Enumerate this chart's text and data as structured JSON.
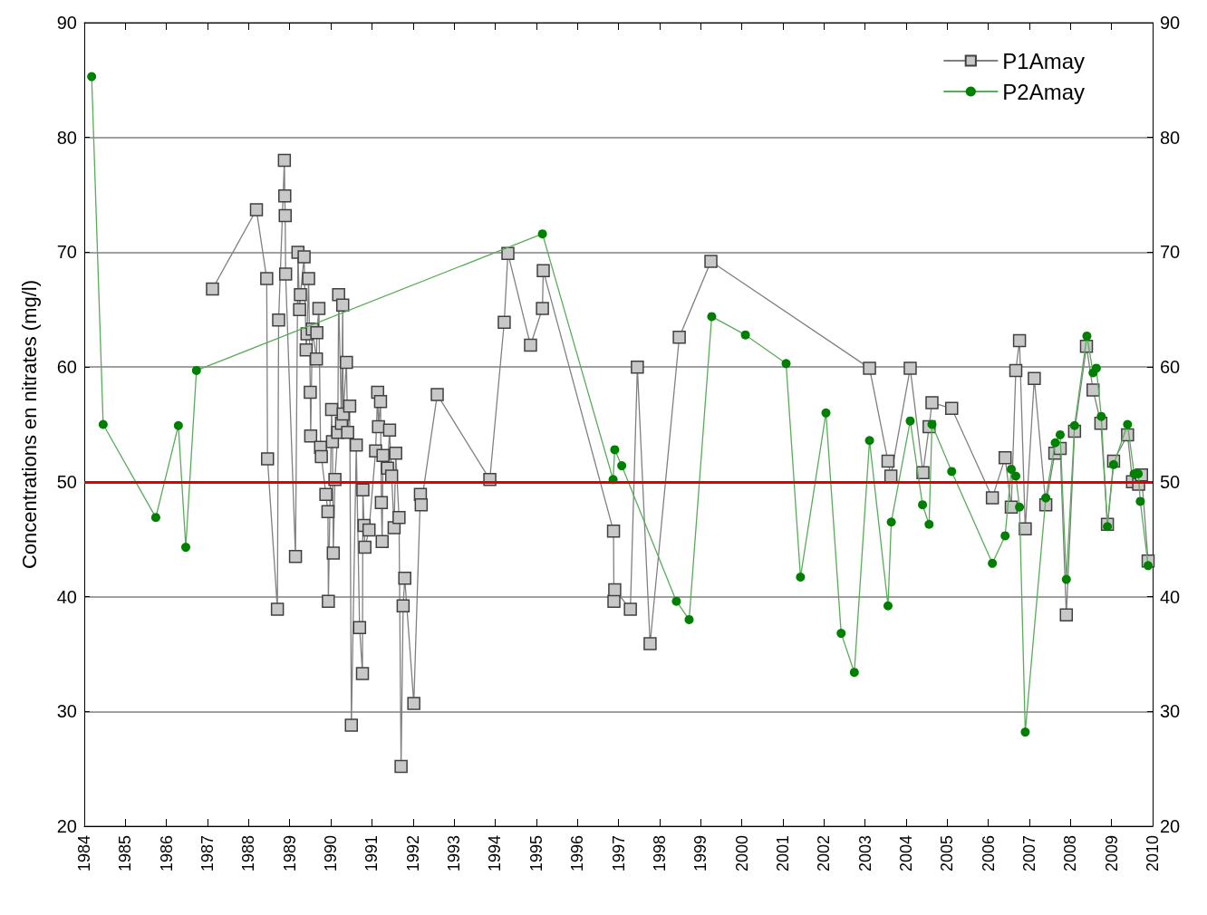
{
  "chart_data": {
    "type": "line",
    "ylabel": "Concentrations en nitrates (mg/l)",
    "xlim": [
      1984,
      2010
    ],
    "xticks": [
      1984,
      1985,
      1986,
      1987,
      1988,
      1989,
      1990,
      1991,
      1992,
      1993,
      1994,
      1995,
      1996,
      1997,
      1998,
      1999,
      2000,
      2001,
      2002,
      2003,
      2004,
      2005,
      2006,
      2007,
      2008,
      2009,
      2010
    ],
    "ylim": [
      20,
      90
    ],
    "yticks": [
      20,
      30,
      40,
      50,
      60,
      70,
      80,
      90
    ],
    "y2lim": [
      20,
      90
    ],
    "y2ticks": [
      20,
      30,
      40,
      50,
      60,
      70,
      80,
      90
    ],
    "grid": "y",
    "legend": "top right",
    "ref_lines": [
      {
        "axis": "y",
        "value": 50,
        "color": "#e00000"
      }
    ],
    "series": [
      {
        "name": "P1Amay",
        "color": "#808080",
        "marker": "square",
        "x": [
          1987.12,
          1988.19,
          1988.44,
          1988.46,
          1988.7,
          1988.73,
          1988.87,
          1988.88,
          1988.89,
          1988.9,
          1989.14,
          1989.2,
          1989.24,
          1989.26,
          1989.35,
          1989.4,
          1989.42,
          1989.46,
          1989.5,
          1989.51,
          1989.55,
          1989.65,
          1989.66,
          1989.71,
          1989.75,
          1989.77,
          1989.88,
          1989.93,
          1989.94,
          1990.02,
          1990.04,
          1990.06,
          1990.1,
          1990.17,
          1990.19,
          1990.26,
          1990.29,
          1990.3,
          1990.38,
          1990.41,
          1990.46,
          1990.5,
          1990.62,
          1990.7,
          1990.77,
          1990.78,
          1990.81,
          1990.83,
          1990.93,
          1991.09,
          1991.14,
          1991.16,
          1991.21,
          1991.23,
          1991.25,
          1991.27,
          1991.38,
          1991.43,
          1991.48,
          1991.54,
          1991.58,
          1991.66,
          1991.71,
          1991.76,
          1991.8,
          1992.02,
          1992.18,
          1992.2,
          1992.59,
          1993.87,
          1994.22,
          1994.31,
          1994.86,
          1995.15,
          1995.17,
          1996.88,
          1996.89,
          1996.91,
          1997.29,
          1997.46,
          1997.77,
          1998.48,
          1999.25,
          2003.11,
          2003.56,
          2003.63,
          2004.1,
          2004.41,
          2004.56,
          2004.63,
          2005.11,
          2006.1,
          2006.41,
          2006.56,
          2006.67,
          2006.76,
          2006.9,
          2007.12,
          2007.4,
          2007.62,
          2007.75,
          2007.9,
          2008.1,
          2008.39,
          2008.55,
          2008.74,
          2008.9,
          2009.05,
          2009.39,
          2009.51,
          2009.66,
          2009.73,
          2009.89
        ],
        "values": [
          66.8,
          73.7,
          67.7,
          52.0,
          38.9,
          64.1,
          78.0,
          74.9,
          73.2,
          68.1,
          43.5,
          70.0,
          65.0,
          66.3,
          69.6,
          61.5,
          62.9,
          67.7,
          57.8,
          54.0,
          63.3,
          60.7,
          63.0,
          65.1,
          53.0,
          52.2,
          48.9,
          47.4,
          39.6,
          56.3,
          53.5,
          43.8,
          50.2,
          54.3,
          66.3,
          55.1,
          65.4,
          55.9,
          60.4,
          54.3,
          56.6,
          28.8,
          53.2,
          37.3,
          33.3,
          49.3,
          46.2,
          44.3,
          45.8,
          52.7,
          57.8,
          54.8,
          57.0,
          48.2,
          44.8,
          52.3,
          51.2,
          54.5,
          50.5,
          46.0,
          52.5,
          46.9,
          25.2,
          39.2,
          41.6,
          30.7,
          48.9,
          48.0,
          57.6,
          50.2,
          63.9,
          69.9,
          61.9,
          65.1,
          68.4,
          45.7,
          39.6,
          40.6,
          38.9,
          60.0,
          35.9,
          62.6,
          69.2,
          59.9,
          51.8,
          50.5,
          59.9,
          50.8,
          54.8,
          56.9,
          56.4,
          48.6,
          52.1,
          47.8,
          59.7,
          62.3,
          45.9,
          59.0,
          48.0,
          52.5,
          52.9,
          38.4,
          54.4,
          61.8,
          58.0,
          55.1,
          46.3,
          51.8,
          54.1,
          50.0,
          49.8,
          50.6,
          43.1
        ]
      },
      {
        "name": "P2Amay",
        "color": "#008000",
        "marker": "circle",
        "x": [
          1984.18,
          1984.46,
          1985.74,
          1986.29,
          1986.47,
          1986.73,
          1995.15,
          1996.87,
          1996.91,
          1997.08,
          1998.41,
          1998.72,
          1999.27,
          2000.09,
          2001.08,
          2001.43,
          2002.05,
          2002.42,
          2002.74,
          2003.11,
          2003.56,
          2003.64,
          2004.1,
          2004.4,
          2004.56,
          2004.63,
          2005.11,
          2006.1,
          2006.41,
          2006.56,
          2006.67,
          2006.76,
          2006.9,
          2007.4,
          2007.63,
          2007.75,
          2007.9,
          2008.1,
          2008.4,
          2008.55,
          2008.63,
          2008.75,
          2008.9,
          2009.05,
          2009.39,
          2009.55,
          2009.65,
          2009.7,
          2009.89
        ],
        "values": [
          85.3,
          55.0,
          46.9,
          54.9,
          44.3,
          59.7,
          71.6,
          50.2,
          52.8,
          51.4,
          39.6,
          38.0,
          64.4,
          62.8,
          60.3,
          41.7,
          56.0,
          36.8,
          33.4,
          53.6,
          39.2,
          46.5,
          55.3,
          48.0,
          46.3,
          55.0,
          50.9,
          42.9,
          45.3,
          51.1,
          50.5,
          47.8,
          28.2,
          48.6,
          53.4,
          54.1,
          41.5,
          54.9,
          62.7,
          59.5,
          59.9,
          55.7,
          46.1,
          51.5,
          55.0,
          50.7,
          50.7,
          48.3,
          42.7
        ]
      }
    ]
  }
}
